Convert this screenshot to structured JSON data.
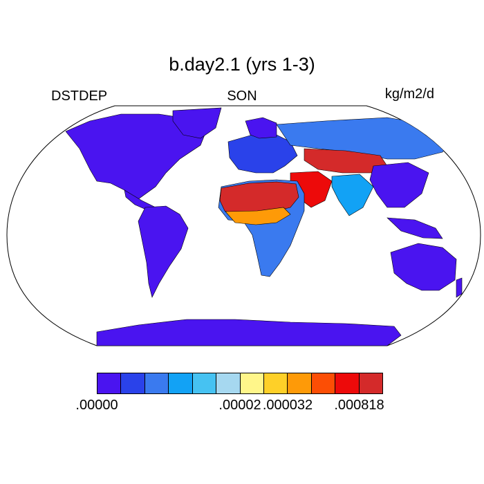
{
  "title": "b.day2.1 (yrs 1-3)",
  "left_label": "DSTDEP",
  "center_label": "SON",
  "right_label": "kg/m2/d",
  "colors": {
    "ocean": "#ffffff",
    "outline": "#000000",
    "land_min": "#4a14f0"
  },
  "colorbar": {
    "colors": [
      "#4a14f0",
      "#2a42ea",
      "#3a7aef",
      "#12a2f5",
      "#46c2f2",
      "#a6d8f0",
      "#fff68a",
      "#fed028",
      "#fe9a08",
      "#fc4e05",
      "#ed0a0a",
      "#d42a2a"
    ],
    "tick_labels": [
      ".00000",
      ".00002",
      ".000032",
      ".000818"
    ]
  },
  "chart_data": {
    "type": "heatmap",
    "projection": "robinson",
    "variable": "DSTDEP",
    "season": "SON",
    "units": "kg/m2/d",
    "color_levels": [
      ".00000",
      ".00002",
      ".000032",
      ".000818"
    ],
    "regions": [
      {
        "name": "North America",
        "level": 0
      },
      {
        "name": "South America",
        "level": 0
      },
      {
        "name": "Greenland",
        "level": 0
      },
      {
        "name": "Europe",
        "level": 1
      },
      {
        "name": "Sahara",
        "level": 11
      },
      {
        "name": "Sahel",
        "level": 8
      },
      {
        "name": "Southern Africa",
        "level": 2
      },
      {
        "name": "Arabia",
        "level": 10
      },
      {
        "name": "Central Asia",
        "level": 11
      },
      {
        "name": "Siberia",
        "level": 2
      },
      {
        "name": "South Asia",
        "level": 3
      },
      {
        "name": "Australia",
        "level": 0
      },
      {
        "name": "Antarctica",
        "level": 0
      }
    ]
  }
}
